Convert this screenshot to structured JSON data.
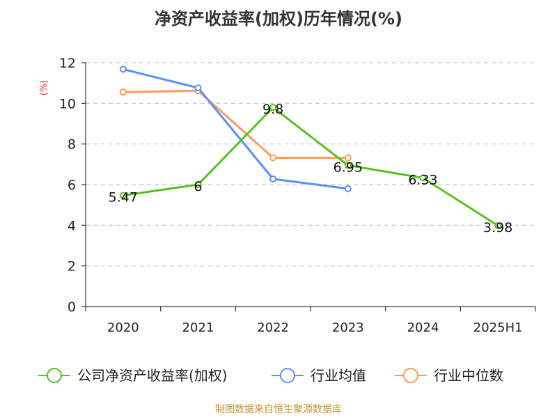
{
  "chart_data": {
    "type": "line",
    "title": "净资产收益率(加权)历年情况(%)",
    "ylabel": "(%)",
    "xlabel": "",
    "categories": [
      "2020",
      "2021",
      "2022",
      "2023",
      "2024",
      "2025H1"
    ],
    "ylim": [
      0,
      12
    ],
    "yticks": [
      0,
      2,
      4,
      6,
      8,
      10,
      12
    ],
    "grid": true,
    "legend_position": "bottom",
    "series": [
      {
        "name": "公司净资产收益率(加权)",
        "color": "#52c41a",
        "values": [
          5.47,
          6,
          9.8,
          6.95,
          6.33,
          3.98
        ],
        "data_labels": [
          "5.47",
          "6",
          "9.8",
          "6.95",
          "6.33",
          "3.98"
        ]
      },
      {
        "name": "行业均值",
        "color": "#5b8ff9",
        "values": [
          11.68,
          10.76,
          6.28,
          5.8,
          null,
          null
        ]
      },
      {
        "name": "行业中位数",
        "color": "#ff9a5c",
        "values": [
          10.55,
          10.62,
          7.32,
          7.32,
          null,
          null
        ]
      }
    ],
    "ylabel_color": "#e8323c"
  },
  "footer": {
    "source": "制图数据来自恒生聚源数据库",
    "color": "#c8912c"
  }
}
